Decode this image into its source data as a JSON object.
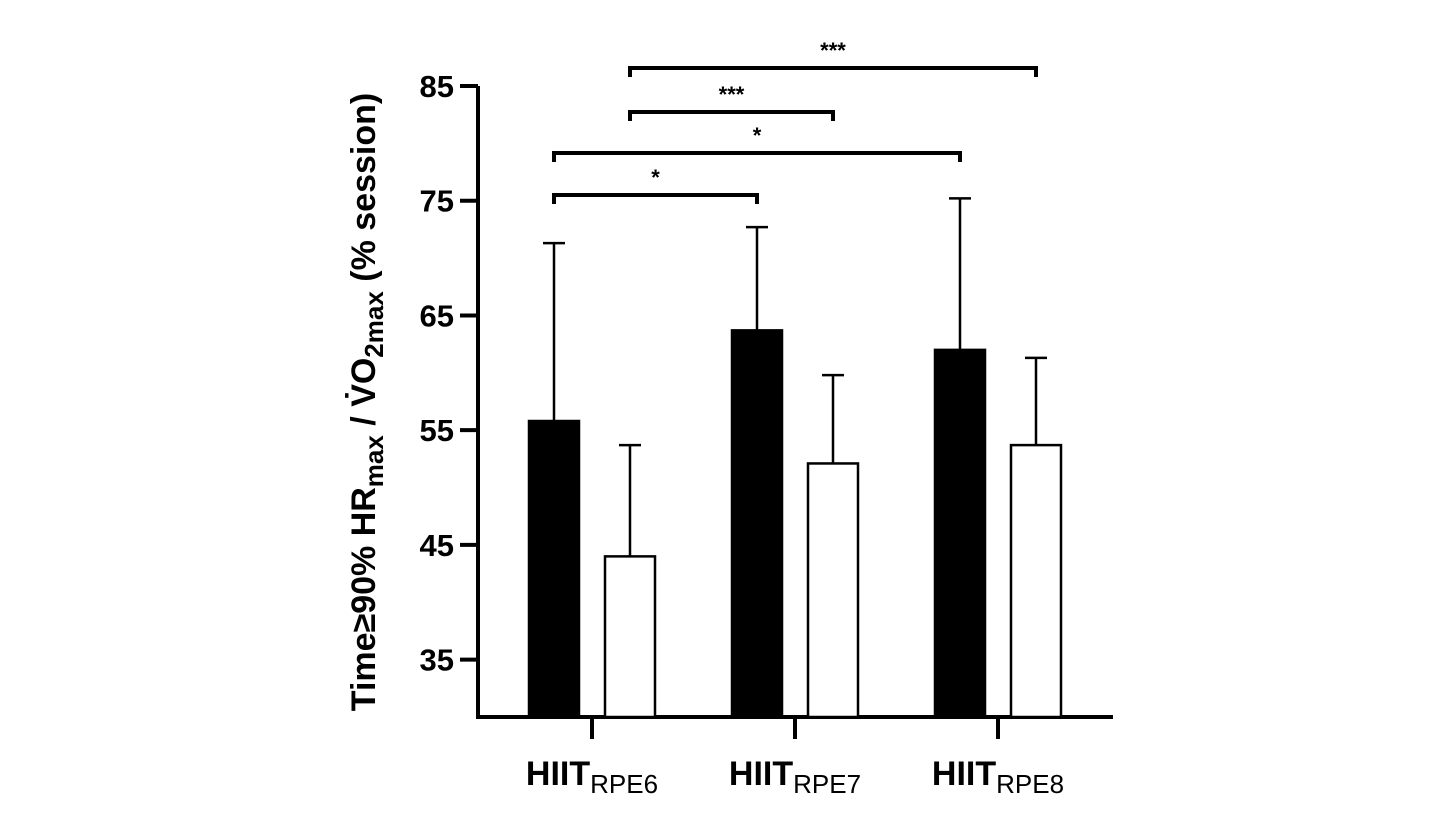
{
  "chart_data": {
    "type": "bar",
    "y_label": [
      {
        "text": "Time≥90% HR"
      },
      {
        "text": "max",
        "sub": true
      },
      {
        "text": " / V̇O"
      },
      {
        "text": "2max",
        "sub": true
      },
      {
        "text": " (% session)"
      }
    ],
    "categories": [
      {
        "text": "HIIT",
        "sub": "RPE6"
      },
      {
        "text": "HIIT",
        "sub": "RPE7"
      },
      {
        "text": "HIIT",
        "sub": "RPE8"
      }
    ],
    "series": [
      {
        "color": "#000000",
        "values": [
          55.8,
          63.7,
          62.0
        ],
        "errors": [
          15.5,
          9.0,
          13.2
        ]
      },
      {
        "color": "#ffffff",
        "values": [
          44.0,
          52.1,
          53.7
        ],
        "errors": [
          9.7,
          7.7,
          7.6
        ]
      }
    ],
    "comparisons": [
      {
        "label": "***",
        "series": 1,
        "from": 0,
        "to": 2
      },
      {
        "label": "***",
        "series": 1,
        "from": 0,
        "to": 1
      },
      {
        "label": "*",
        "series": 0,
        "from": 0,
        "to": 2
      },
      {
        "label": "*",
        "series": 0,
        "from": 0,
        "to": 1
      }
    ],
    "ylim": [
      30,
      85
    ],
    "yticks": [
      35,
      45,
      55,
      65,
      75,
      85
    ],
    "grid": false
  }
}
